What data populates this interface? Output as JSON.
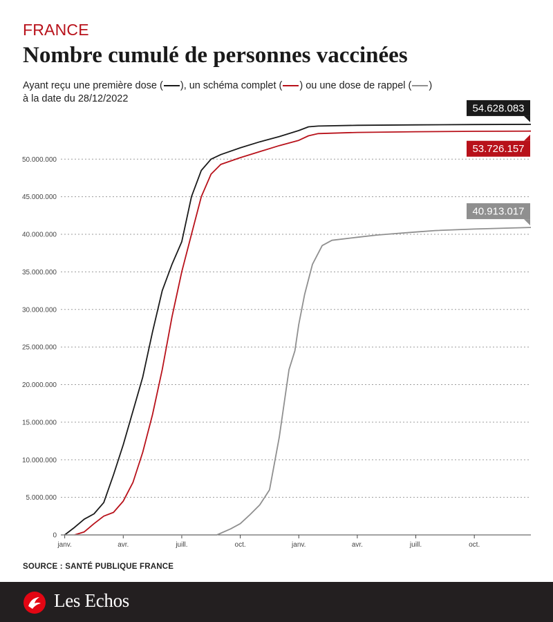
{
  "header": {
    "kicker": "FRANCE",
    "title": "Nombre cumulé de personnes vaccinées",
    "subtitle_part1": "Ayant reçu une première dose (",
    "subtitle_part2": "), un schéma complet (",
    "subtitle_part3": ") ou une dose de rappel (",
    "subtitle_part4": ")",
    "subtitle_line2": "à la date du 28/12/2022"
  },
  "source": "SOURCE : SANTÉ PUBLIQUE FRANCE",
  "footer": {
    "brand": "Les Echos",
    "background": "#231f20"
  },
  "colors": {
    "first_dose": "#1a1a1a",
    "complete": "#b8111a",
    "booster": "#8f8f8f",
    "kicker": "#b8111a"
  },
  "chart_data": {
    "type": "line",
    "title": "Nombre cumulé de personnes vaccinées",
    "xlabel": "",
    "ylabel": "",
    "x_unit": "month index (0 = janv. 2021)",
    "x_ticks": [
      {
        "x": 0,
        "label": "janv."
      },
      {
        "x": 3,
        "label": "avr."
      },
      {
        "x": 6,
        "label": "juill."
      },
      {
        "x": 9,
        "label": "oct."
      },
      {
        "x": 12,
        "label": "janv."
      },
      {
        "x": 15,
        "label": "avr."
      },
      {
        "x": 18,
        "label": "juill."
      },
      {
        "x": 21,
        "label": "oct."
      }
    ],
    "y_ticks": [
      {
        "v": 0,
        "label": "0"
      },
      {
        "v": 5000000,
        "label": "5.000.000"
      },
      {
        "v": 10000000,
        "label": "10.000.000"
      },
      {
        "v": 15000000,
        "label": "15.000.000"
      },
      {
        "v": 20000000,
        "label": "20.000.000"
      },
      {
        "v": 25000000,
        "label": "25.000.000"
      },
      {
        "v": 30000000,
        "label": "30.000.000"
      },
      {
        "v": 35000000,
        "label": "35.000.000"
      },
      {
        "v": 40000000,
        "label": "40.000.000"
      },
      {
        "v": 45000000,
        "label": "45.000.000"
      },
      {
        "v": 50000000,
        "label": "50.000.000"
      }
    ],
    "xlim": [
      -0.2,
      23.9
    ],
    "ylim": [
      0,
      56000000
    ],
    "grid": "horizontal dotted",
    "series": [
      {
        "key": "first_dose",
        "color": "#1a1a1a",
        "end_label": "54.628.083",
        "points": [
          [
            0,
            0
          ],
          [
            0.5,
            1000000
          ],
          [
            1,
            2100000
          ],
          [
            1.5,
            2800000
          ],
          [
            2,
            4300000
          ],
          [
            2.5,
            8000000
          ],
          [
            3,
            12000000
          ],
          [
            3.5,
            16500000
          ],
          [
            4,
            21000000
          ],
          [
            4.5,
            27000000
          ],
          [
            5,
            32500000
          ],
          [
            5.5,
            36000000
          ],
          [
            6,
            39000000
          ],
          [
            6.5,
            45000000
          ],
          [
            7,
            48500000
          ],
          [
            7.5,
            50000000
          ],
          [
            8,
            50600000
          ],
          [
            9,
            51500000
          ],
          [
            10,
            52300000
          ],
          [
            11,
            53000000
          ],
          [
            12,
            53800000
          ],
          [
            12.5,
            54300000
          ],
          [
            13,
            54400000
          ],
          [
            15,
            54500000
          ],
          [
            18,
            54560000
          ],
          [
            21,
            54600000
          ],
          [
            23.9,
            54628083
          ]
        ]
      },
      {
        "key": "complete",
        "color": "#b8111a",
        "end_label": "53.726.157",
        "points": [
          [
            0.5,
            0
          ],
          [
            1,
            400000
          ],
          [
            1.5,
            1500000
          ],
          [
            2,
            2500000
          ],
          [
            2.5,
            3000000
          ],
          [
            3,
            4500000
          ],
          [
            3.5,
            7000000
          ],
          [
            4,
            11000000
          ],
          [
            4.5,
            16000000
          ],
          [
            5,
            22000000
          ],
          [
            5.5,
            29000000
          ],
          [
            6,
            35000000
          ],
          [
            6.5,
            40000000
          ],
          [
            7,
            45000000
          ],
          [
            7.5,
            48000000
          ],
          [
            8,
            49300000
          ],
          [
            9,
            50200000
          ],
          [
            10,
            51000000
          ],
          [
            11,
            51800000
          ],
          [
            12,
            52500000
          ],
          [
            12.5,
            53100000
          ],
          [
            13,
            53400000
          ],
          [
            15,
            53550000
          ],
          [
            18,
            53650000
          ],
          [
            21,
            53700000
          ],
          [
            23.9,
            53726157
          ]
        ]
      },
      {
        "key": "booster",
        "color": "#8f8f8f",
        "end_label": "40.913.017",
        "points": [
          [
            0,
            0
          ],
          [
            7.8,
            0
          ],
          [
            8.5,
            800000
          ],
          [
            9,
            1500000
          ],
          [
            9.5,
            2700000
          ],
          [
            10,
            4000000
          ],
          [
            10.5,
            6000000
          ],
          [
            11,
            13000000
          ],
          [
            11.5,
            22000000
          ],
          [
            11.8,
            24500000
          ],
          [
            12,
            28000000
          ],
          [
            12.3,
            32000000
          ],
          [
            12.7,
            36000000
          ],
          [
            13.2,
            38500000
          ],
          [
            13.7,
            39200000
          ],
          [
            15,
            39600000
          ],
          [
            16,
            39900000
          ],
          [
            17,
            40100000
          ],
          [
            18,
            40300000
          ],
          [
            19,
            40500000
          ],
          [
            21,
            40700000
          ],
          [
            23.9,
            40913017
          ]
        ]
      }
    ]
  }
}
